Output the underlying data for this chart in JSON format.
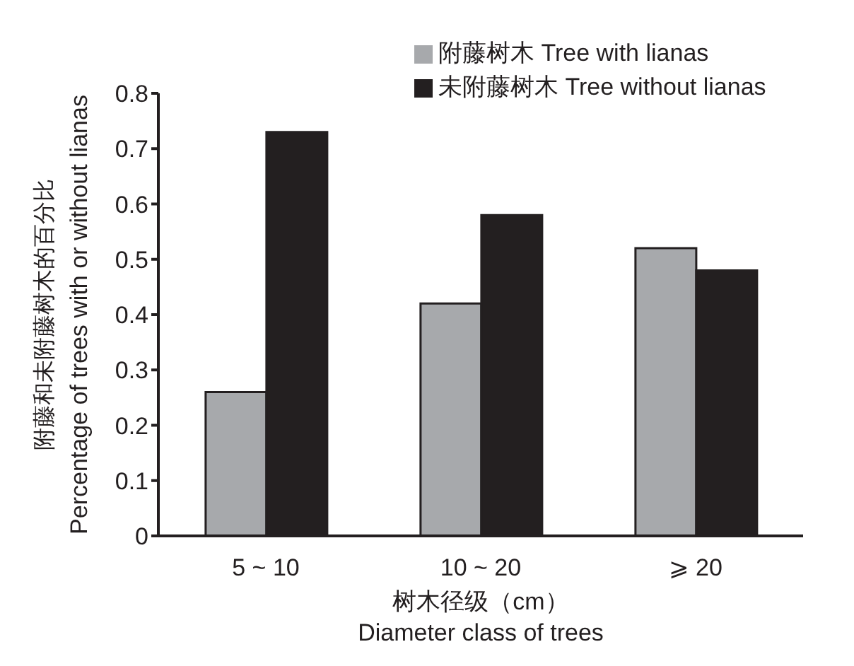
{
  "chart_data": {
    "type": "bar",
    "categories": [
      "5 ~ 10",
      "10 ~ 20",
      "⩾ 20"
    ],
    "series": [
      {
        "name": "附藤树木  Tree with lianas",
        "color": "#a7a9ac",
        "values": [
          0.26,
          0.42,
          0.52
        ]
      },
      {
        "name": "未附藤树木  Tree without lianas",
        "color": "#231f20",
        "values": [
          0.73,
          0.58,
          0.48
        ]
      }
    ],
    "xlabel": "树木径级（cm）\nDiameter class of trees",
    "ylabel": "附藤和未附藤树木的百分比\nPercentage of trees with or without lianas",
    "ylim": [
      0,
      0.8
    ],
    "yticks": [
      0,
      0.1,
      0.2,
      0.3,
      0.4,
      0.5,
      0.6,
      0.7,
      0.8
    ],
    "grid": false,
    "legend": "top right"
  }
}
